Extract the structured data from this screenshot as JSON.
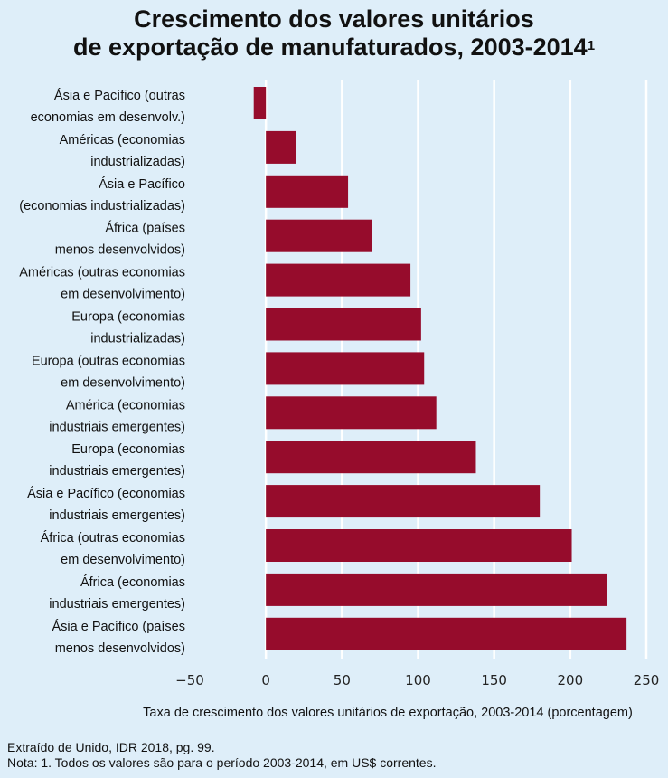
{
  "chart_data": {
    "type": "bar",
    "orientation": "horizontal",
    "title_line1": "Crescimento dos valores unitários",
    "title_line2": "de exportação de manufaturados, 2003-2014",
    "title_sup": "1",
    "xlabel": "Taxa de crescimento dos valores unitários de exportação, 2003-2014 (porcentagem)",
    "xlim": [
      -50,
      250
    ],
    "xticks": [
      -50,
      0,
      50,
      100,
      150,
      200,
      250
    ],
    "xtick_labels": [
      "−50",
      "0",
      "50",
      "100",
      "150",
      "200",
      "250"
    ],
    "grid": "vertical",
    "bar_color": "#960c2c",
    "categories": [
      [
        "Ásia e Pacífico (outras",
        "economias em desenvolv.)"
      ],
      [
        "Américas (economias",
        "industrializadas)"
      ],
      [
        "Ásia e Pacífico",
        "(economias industrializadas)"
      ],
      [
        "África (países",
        "menos desenvolvidos)"
      ],
      [
        "Américas (outras economias",
        "em desenvolvimento)"
      ],
      [
        "Europa (economias",
        "industrializadas)"
      ],
      [
        "Europa (outras economias",
        "em desenvolvimento)"
      ],
      [
        "América (economias",
        "industriais emergentes)"
      ],
      [
        "Europa (economias",
        "industriais emergentes)"
      ],
      [
        "Ásia e Pacífico (economias",
        "industriais emergentes)"
      ],
      [
        "África (outras economias",
        "em desenvolvimento)"
      ],
      [
        "África (economias",
        "industriais emergentes)"
      ],
      [
        "Ásia e Pacífico (países",
        "menos desenvolvidos)"
      ]
    ],
    "values": [
      -8,
      20,
      54,
      70,
      95,
      102,
      104,
      112,
      138,
      180,
      201,
      224,
      237
    ]
  },
  "footer": {
    "source": "Extraído de Unido, IDR 2018, pg. 99.",
    "note": "Nota: 1. Todos os valores são para o período 2003-2014, em US$ correntes."
  }
}
